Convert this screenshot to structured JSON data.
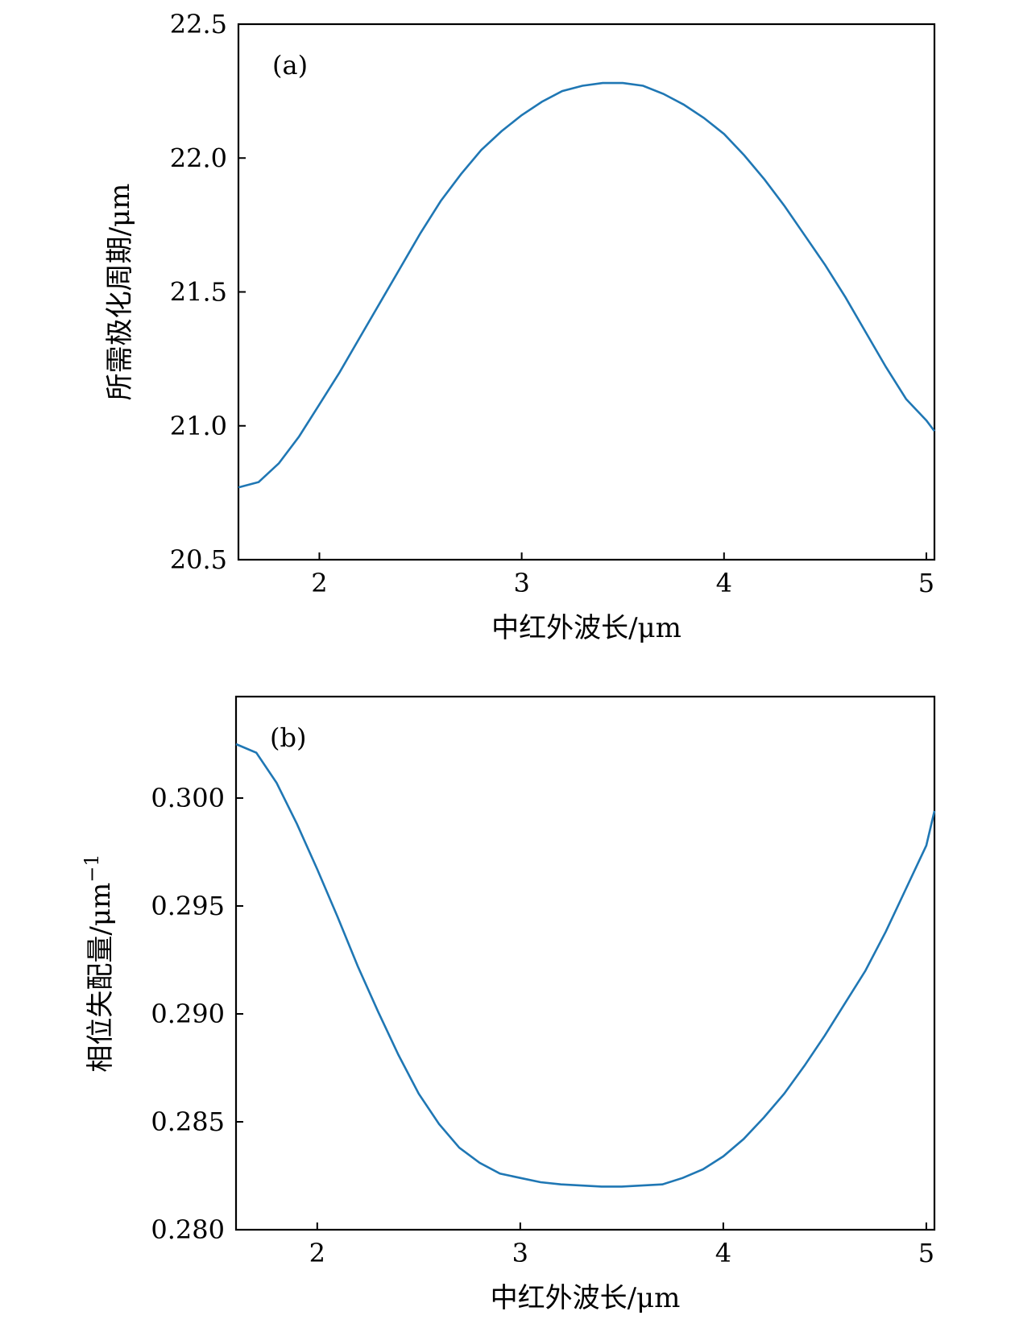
{
  "chart_data": [
    {
      "type": "line",
      "panel_label": "(a)",
      "xlabel": "中红外波长/μm",
      "ylabel": "所需极化周期/μm",
      "xlim": [
        1.6,
        5.04
      ],
      "ylim": [
        20.5,
        22.5
      ],
      "xticks": [
        2,
        3,
        4,
        5
      ],
      "xtick_labels": [
        "2",
        "3",
        "4",
        "5"
      ],
      "yticks": [
        20.5,
        21.0,
        21.5,
        22.0,
        22.5
      ],
      "ytick_labels": [
        "20.5",
        "21.0",
        "21.5",
        "22.0",
        "22.5"
      ],
      "grid": false,
      "series": [
        {
          "color": "#1f77b4",
          "x": [
            1.6,
            1.7,
            1.8,
            1.9,
            2.0,
            2.1,
            2.2,
            2.3,
            2.4,
            2.5,
            2.6,
            2.7,
            2.8,
            2.9,
            3.0,
            3.1,
            3.2,
            3.3,
            3.4,
            3.5,
            3.6,
            3.7,
            3.8,
            3.9,
            4.0,
            4.1,
            4.2,
            4.3,
            4.4,
            4.5,
            4.6,
            4.7,
            4.8,
            4.9,
            5.0,
            5.04
          ],
          "y": [
            20.77,
            20.79,
            20.86,
            20.96,
            21.08,
            21.2,
            21.33,
            21.46,
            21.59,
            21.72,
            21.84,
            21.94,
            22.03,
            22.1,
            22.16,
            22.21,
            22.25,
            22.27,
            22.28,
            22.28,
            22.27,
            22.24,
            22.2,
            22.15,
            22.09,
            22.01,
            21.92,
            21.82,
            21.71,
            21.6,
            21.48,
            21.35,
            21.22,
            21.1,
            21.02,
            20.98
          ]
        }
      ]
    },
    {
      "type": "line",
      "panel_label": "(b)",
      "xlabel": "中红外波长/μm",
      "ylabel": "相位失配量/μm",
      "ylabel_sup": "−1",
      "xlim": [
        1.6,
        5.04
      ],
      "ylim": [
        0.28,
        0.3047
      ],
      "xticks": [
        2,
        3,
        4,
        5
      ],
      "xtick_labels": [
        "2",
        "3",
        "4",
        "5"
      ],
      "yticks": [
        0.28,
        0.285,
        0.29,
        0.295,
        0.3
      ],
      "ytick_labels": [
        "0.280",
        "0.285",
        "0.290",
        "0.295",
        "0.300"
      ],
      "grid": false,
      "series": [
        {
          "color": "#1f77b4",
          "x": [
            1.6,
            1.7,
            1.8,
            1.9,
            2.0,
            2.1,
            2.2,
            2.3,
            2.4,
            2.5,
            2.6,
            2.7,
            2.8,
            2.9,
            3.0,
            3.1,
            3.2,
            3.3,
            3.4,
            3.5,
            3.6,
            3.7,
            3.8,
            3.9,
            4.0,
            4.1,
            4.2,
            4.3,
            4.4,
            4.5,
            4.6,
            4.7,
            4.8,
            4.9,
            5.0,
            5.04
          ],
          "y": [
            0.3025,
            0.3021,
            0.3007,
            0.2988,
            0.2967,
            0.2945,
            0.2922,
            0.2901,
            0.2881,
            0.2863,
            0.2849,
            0.2838,
            0.2831,
            0.2826,
            0.2824,
            0.2822,
            0.2821,
            0.28205,
            0.282,
            0.282,
            0.28205,
            0.2821,
            0.2824,
            0.2828,
            0.2834,
            0.2842,
            0.2852,
            0.2863,
            0.2876,
            0.289,
            0.2905,
            0.292,
            0.2938,
            0.2958,
            0.2978,
            0.2994
          ]
        }
      ]
    }
  ]
}
